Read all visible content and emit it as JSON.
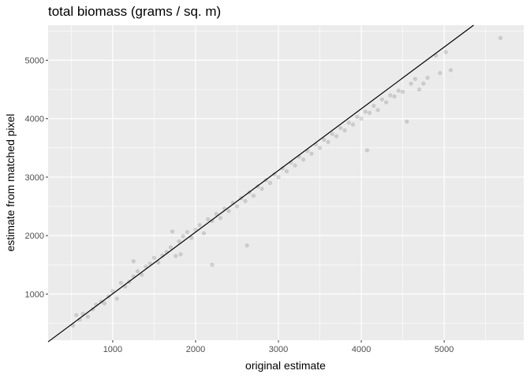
{
  "chart_data": {
    "type": "scatter",
    "title": "total biomass (grams / sq. m)",
    "xlabel": "original estimate",
    "ylabel": "estimate from matched pixel",
    "xlim": [
      220,
      5960
    ],
    "ylim": [
      210,
      5600
    ],
    "x_ticks": [
      1000,
      2000,
      3000,
      4000,
      5000
    ],
    "y_ticks": [
      1000,
      2000,
      3000,
      4000,
      5000
    ],
    "x_tick_labels": [
      "1000",
      "2000",
      "3000",
      "4000",
      "5000"
    ],
    "y_tick_labels": [
      "1000",
      "2000",
      "3000",
      "4000",
      "5000"
    ],
    "grid": true,
    "reference_line": {
      "slope": 1.055,
      "intercept": -50
    },
    "colors": {
      "panel": "#ebebeb",
      "grid": "#ffffff",
      "points": "#000000",
      "line": "#000000"
    },
    "point_opacity": 0.13,
    "points": [
      [
        520,
        460
      ],
      [
        560,
        640
      ],
      [
        600,
        560
      ],
      [
        640,
        660
      ],
      [
        700,
        610
      ],
      [
        760,
        740
      ],
      [
        800,
        820
      ],
      [
        860,
        870
      ],
      [
        900,
        840
      ],
      [
        950,
        960
      ],
      [
        1000,
        1050
      ],
      [
        1050,
        920
      ],
      [
        1100,
        1190
      ],
      [
        1150,
        1130
      ],
      [
        1200,
        1210
      ],
      [
        1250,
        1300
      ],
      [
        1250,
        1560
      ],
      [
        1300,
        1390
      ],
      [
        1350,
        1330
      ],
      [
        1400,
        1470
      ],
      [
        1450,
        1520
      ],
      [
        1500,
        1620
      ],
      [
        1550,
        1540
      ],
      [
        1600,
        1660
      ],
      [
        1650,
        1720
      ],
      [
        1700,
        1800
      ],
      [
        1720,
        2070
      ],
      [
        1760,
        1650
      ],
      [
        1800,
        1900
      ],
      [
        1820,
        1680
      ],
      [
        1850,
        1990
      ],
      [
        1900,
        2060
      ],
      [
        1950,
        1960
      ],
      [
        2000,
        2100
      ],
      [
        2050,
        2180
      ],
      [
        2100,
        2040
      ],
      [
        2150,
        2280
      ],
      [
        2200,
        2250
      ],
      [
        2200,
        1500
      ],
      [
        2250,
        2370
      ],
      [
        2300,
        2300
      ],
      [
        2350,
        2460
      ],
      [
        2400,
        2420
      ],
      [
        2450,
        2560
      ],
      [
        2500,
        2500
      ],
      [
        2550,
        2640
      ],
      [
        2600,
        2590
      ],
      [
        2620,
        1830
      ],
      [
        2650,
        2740
      ],
      [
        2700,
        2680
      ],
      [
        2750,
        2840
      ],
      [
        2800,
        2800
      ],
      [
        2850,
        2950
      ],
      [
        2900,
        2900
      ],
      [
        2950,
        3050
      ],
      [
        3000,
        3000
      ],
      [
        3050,
        3150
      ],
      [
        3100,
        3100
      ],
      [
        3150,
        3250
      ],
      [
        3200,
        3200
      ],
      [
        3250,
        3350
      ],
      [
        3300,
        3300
      ],
      [
        3350,
        3450
      ],
      [
        3400,
        3400
      ],
      [
        3450,
        3560
      ],
      [
        3500,
        3500
      ],
      [
        3550,
        3640
      ],
      [
        3600,
        3600
      ],
      [
        3650,
        3740
      ],
      [
        3700,
        3700
      ],
      [
        3750,
        3840
      ],
      [
        3800,
        3800
      ],
      [
        3850,
        3930
      ],
      [
        3900,
        3900
      ],
      [
        3950,
        4030
      ],
      [
        4000,
        4000
      ],
      [
        4050,
        4120
      ],
      [
        4070,
        3460
      ],
      [
        4100,
        4100
      ],
      [
        4150,
        4220
      ],
      [
        4200,
        4150
      ],
      [
        4250,
        4330
      ],
      [
        4300,
        4280
      ],
      [
        4350,
        4400
      ],
      [
        4400,
        4380
      ],
      [
        4450,
        4480
      ],
      [
        4500,
        4460
      ],
      [
        4550,
        3950
      ],
      [
        4600,
        4600
      ],
      [
        4650,
        4680
      ],
      [
        4700,
        4500
      ],
      [
        4750,
        4600
      ],
      [
        4800,
        4700
      ],
      [
        4900,
        5080
      ],
      [
        4950,
        4780
      ],
      [
        5020,
        5140
      ],
      [
        5080,
        4830
      ],
      [
        5680,
        5380
      ]
    ]
  }
}
